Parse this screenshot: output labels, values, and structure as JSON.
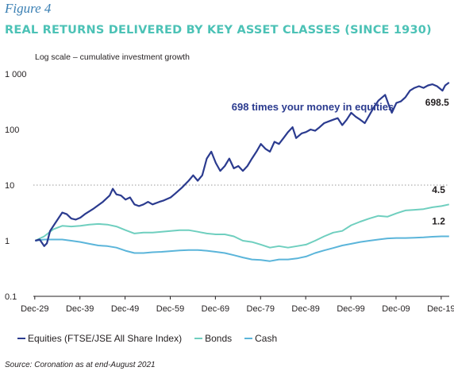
{
  "figure_label": "Figure 4",
  "title": "REAL RETURNS DELIVERED BY KEY ASSET CLASSES (SINCE 1930)",
  "scale_note": "Log scale – cumulative investment growth",
  "source": "Source: Coronation as at end-August 2021",
  "colors": {
    "equities": "#2b3b8f",
    "bonds": "#6fcfbf",
    "cash": "#5bb5da",
    "title": "#4cc2b6",
    "figure_label": "#3a7fb3"
  },
  "chart_data": {
    "type": "line",
    "y_scale": "log",
    "ylim": [
      0.1,
      1000
    ],
    "xlim": [
      1929.6,
      2021.7
    ],
    "y_ticks": [
      {
        "value": 0.1,
        "label": "0.1"
      },
      {
        "value": 1,
        "label": "1"
      },
      {
        "value": 10,
        "label": "10"
      },
      {
        "value": 100,
        "label": "100"
      },
      {
        "value": 1000,
        "label": "1 000"
      }
    ],
    "x_ticks": [
      {
        "value": 1929.917,
        "label": "Dec-29"
      },
      {
        "value": 1939.917,
        "label": "Dec-39"
      },
      {
        "value": 1949.917,
        "label": "Dec-49"
      },
      {
        "value": 1959.917,
        "label": "Dec-59"
      },
      {
        "value": 1969.917,
        "label": "Dec-69"
      },
      {
        "value": 1979.917,
        "label": "Dec-79"
      },
      {
        "value": 1989.917,
        "label": "Dec-89"
      },
      {
        "value": 1999.917,
        "label": "Dec-99"
      },
      {
        "value": 2009.917,
        "label": "Dec-09"
      },
      {
        "value": 2019.917,
        "label": "Dec-19"
      }
    ],
    "dotted_gridlines": [
      10
    ],
    "legend_position": "bottom",
    "series": [
      {
        "name": "Equities (FTSE/JSE All Share Index)",
        "color": "#2b3b8f",
        "points": [
          [
            1930.0,
            1.0
          ],
          [
            1931.0,
            1.05
          ],
          [
            1932.0,
            0.8
          ],
          [
            1932.6,
            0.9
          ],
          [
            1933.3,
            1.5
          ],
          [
            1934.5,
            2.1
          ],
          [
            1936.0,
            3.2
          ],
          [
            1937.0,
            3.0
          ],
          [
            1938.0,
            2.5
          ],
          [
            1939.0,
            2.4
          ],
          [
            1940.0,
            2.6
          ],
          [
            1941.0,
            3.0
          ],
          [
            1943.0,
            3.8
          ],
          [
            1945.0,
            5.0
          ],
          [
            1946.5,
            6.5
          ],
          [
            1947.2,
            8.6
          ],
          [
            1948.0,
            6.8
          ],
          [
            1949.0,
            6.5
          ],
          [
            1950.0,
            5.5
          ],
          [
            1951.0,
            6.0
          ],
          [
            1952.0,
            4.5
          ],
          [
            1953.0,
            4.2
          ],
          [
            1954.0,
            4.5
          ],
          [
            1955.0,
            5.0
          ],
          [
            1956.0,
            4.5
          ],
          [
            1957.5,
            5.0
          ],
          [
            1958.5,
            5.3
          ],
          [
            1960.0,
            6.0
          ],
          [
            1961.0,
            7.0
          ],
          [
            1962.5,
            9.0
          ],
          [
            1964.0,
            12.0
          ],
          [
            1965.0,
            15.0
          ],
          [
            1966.0,
            12.0
          ],
          [
            1967.0,
            15.0
          ],
          [
            1968.0,
            30.0
          ],
          [
            1969.0,
            40.0
          ],
          [
            1970.0,
            25.0
          ],
          [
            1971.0,
            18.0
          ],
          [
            1972.0,
            22.0
          ],
          [
            1973.0,
            30.0
          ],
          [
            1974.0,
            20.0
          ],
          [
            1975.0,
            22.0
          ],
          [
            1976.0,
            18.0
          ],
          [
            1977.0,
            22.0
          ],
          [
            1978.0,
            30.0
          ],
          [
            1979.0,
            40.0
          ],
          [
            1980.0,
            55.0
          ],
          [
            1981.0,
            45.0
          ],
          [
            1982.0,
            40.0
          ],
          [
            1983.0,
            60.0
          ],
          [
            1984.0,
            55.0
          ],
          [
            1985.0,
            70.0
          ],
          [
            1986.0,
            90.0
          ],
          [
            1987.0,
            110.0
          ],
          [
            1987.8,
            70.0
          ],
          [
            1989.0,
            85.0
          ],
          [
            1990.0,
            90.0
          ],
          [
            1991.0,
            100.0
          ],
          [
            1992.0,
            95.0
          ],
          [
            1993.0,
            110.0
          ],
          [
            1994.0,
            130.0
          ],
          [
            1995.0,
            140.0
          ],
          [
            1996.0,
            150.0
          ],
          [
            1997.0,
            160.0
          ],
          [
            1998.0,
            120.0
          ],
          [
            1999.0,
            150.0
          ],
          [
            2000.0,
            200.0
          ],
          [
            2001.0,
            170.0
          ],
          [
            2002.0,
            150.0
          ],
          [
            2003.0,
            130.0
          ],
          [
            2004.0,
            180.0
          ],
          [
            2005.0,
            250.0
          ],
          [
            2006.0,
            330.0
          ],
          [
            2007.5,
            420.0
          ],
          [
            2008.5,
            250.0
          ],
          [
            2009.0,
            200.0
          ],
          [
            2010.0,
            300.0
          ],
          [
            2011.0,
            320.0
          ],
          [
            2012.0,
            380.0
          ],
          [
            2013.0,
            500.0
          ],
          [
            2014.0,
            560.0
          ],
          [
            2015.0,
            600.0
          ],
          [
            2016.0,
            560.0
          ],
          [
            2017.0,
            620.0
          ],
          [
            2018.0,
            650.0
          ],
          [
            2019.0,
            600.0
          ],
          [
            2020.2,
            500.0
          ],
          [
            2020.8,
            620.0
          ],
          [
            2021.67,
            698.5
          ]
        ]
      },
      {
        "name": "Bonds",
        "color": "#6fcfbf",
        "points": [
          [
            1930.0,
            1.0
          ],
          [
            1932.0,
            1.2
          ],
          [
            1934.0,
            1.6
          ],
          [
            1936.0,
            1.85
          ],
          [
            1938.0,
            1.8
          ],
          [
            1940.0,
            1.85
          ],
          [
            1942.0,
            1.95
          ],
          [
            1944.0,
            2.0
          ],
          [
            1946.0,
            1.95
          ],
          [
            1948.0,
            1.8
          ],
          [
            1950.0,
            1.55
          ],
          [
            1952.0,
            1.35
          ],
          [
            1954.0,
            1.4
          ],
          [
            1956.0,
            1.4
          ],
          [
            1958.0,
            1.45
          ],
          [
            1960.0,
            1.5
          ],
          [
            1962.0,
            1.55
          ],
          [
            1964.0,
            1.55
          ],
          [
            1966.0,
            1.45
          ],
          [
            1968.0,
            1.35
          ],
          [
            1970.0,
            1.3
          ],
          [
            1972.0,
            1.3
          ],
          [
            1974.0,
            1.2
          ],
          [
            1976.0,
            1.0
          ],
          [
            1978.0,
            0.95
          ],
          [
            1980.0,
            0.85
          ],
          [
            1982.0,
            0.75
          ],
          [
            1984.0,
            0.8
          ],
          [
            1986.0,
            0.75
          ],
          [
            1988.0,
            0.8
          ],
          [
            1990.0,
            0.85
          ],
          [
            1992.0,
            1.0
          ],
          [
            1994.0,
            1.2
          ],
          [
            1996.0,
            1.4
          ],
          [
            1998.0,
            1.5
          ],
          [
            2000.0,
            1.9
          ],
          [
            2002.0,
            2.2
          ],
          [
            2004.0,
            2.5
          ],
          [
            2006.0,
            2.8
          ],
          [
            2008.0,
            2.7
          ],
          [
            2010.0,
            3.1
          ],
          [
            2012.0,
            3.5
          ],
          [
            2014.0,
            3.6
          ],
          [
            2016.0,
            3.7
          ],
          [
            2018.0,
            4.0
          ],
          [
            2020.0,
            4.2
          ],
          [
            2021.67,
            4.5
          ]
        ]
      },
      {
        "name": "Cash",
        "color": "#5bb5da",
        "points": [
          [
            1930.0,
            1.0
          ],
          [
            1932.0,
            1.05
          ],
          [
            1934.0,
            1.05
          ],
          [
            1936.0,
            1.05
          ],
          [
            1938.0,
            1.0
          ],
          [
            1940.0,
            0.95
          ],
          [
            1942.0,
            0.88
          ],
          [
            1944.0,
            0.82
          ],
          [
            1946.0,
            0.8
          ],
          [
            1948.0,
            0.75
          ],
          [
            1950.0,
            0.66
          ],
          [
            1952.0,
            0.6
          ],
          [
            1954.0,
            0.6
          ],
          [
            1956.0,
            0.62
          ],
          [
            1958.0,
            0.63
          ],
          [
            1960.0,
            0.65
          ],
          [
            1962.0,
            0.67
          ],
          [
            1964.0,
            0.68
          ],
          [
            1966.0,
            0.68
          ],
          [
            1968.0,
            0.66
          ],
          [
            1970.0,
            0.63
          ],
          [
            1972.0,
            0.6
          ],
          [
            1974.0,
            0.55
          ],
          [
            1976.0,
            0.5
          ],
          [
            1978.0,
            0.46
          ],
          [
            1980.0,
            0.45
          ],
          [
            1982.0,
            0.43
          ],
          [
            1984.0,
            0.46
          ],
          [
            1986.0,
            0.46
          ],
          [
            1988.0,
            0.48
          ],
          [
            1990.0,
            0.52
          ],
          [
            1992.0,
            0.6
          ],
          [
            1994.0,
            0.67
          ],
          [
            1996.0,
            0.74
          ],
          [
            1998.0,
            0.82
          ],
          [
            2000.0,
            0.88
          ],
          [
            2002.0,
            0.95
          ],
          [
            2004.0,
            1.0
          ],
          [
            2006.0,
            1.05
          ],
          [
            2008.0,
            1.1
          ],
          [
            2010.0,
            1.12
          ],
          [
            2012.0,
            1.12
          ],
          [
            2014.0,
            1.13
          ],
          [
            2016.0,
            1.15
          ],
          [
            2018.0,
            1.18
          ],
          [
            2020.0,
            1.2
          ],
          [
            2021.67,
            1.2
          ]
        ]
      }
    ],
    "annotations": [
      {
        "id": "headline",
        "text": "698 times your money in equities",
        "x": 1973.5,
        "y": 220,
        "color": "#2b3b8f",
        "anchor": "start"
      },
      {
        "id": "equities_end",
        "text": "698.5",
        "x": 2021.67,
        "y": 270,
        "color": "#231f20",
        "anchor": "end"
      },
      {
        "id": "bonds_end",
        "text": "4.5",
        "x": 2020.8,
        "y": 7.2,
        "color": "#231f20",
        "anchor": "end"
      },
      {
        "id": "cash_end",
        "text": "1.2",
        "x": 2020.8,
        "y": 1.95,
        "color": "#231f20",
        "anchor": "end"
      }
    ]
  }
}
